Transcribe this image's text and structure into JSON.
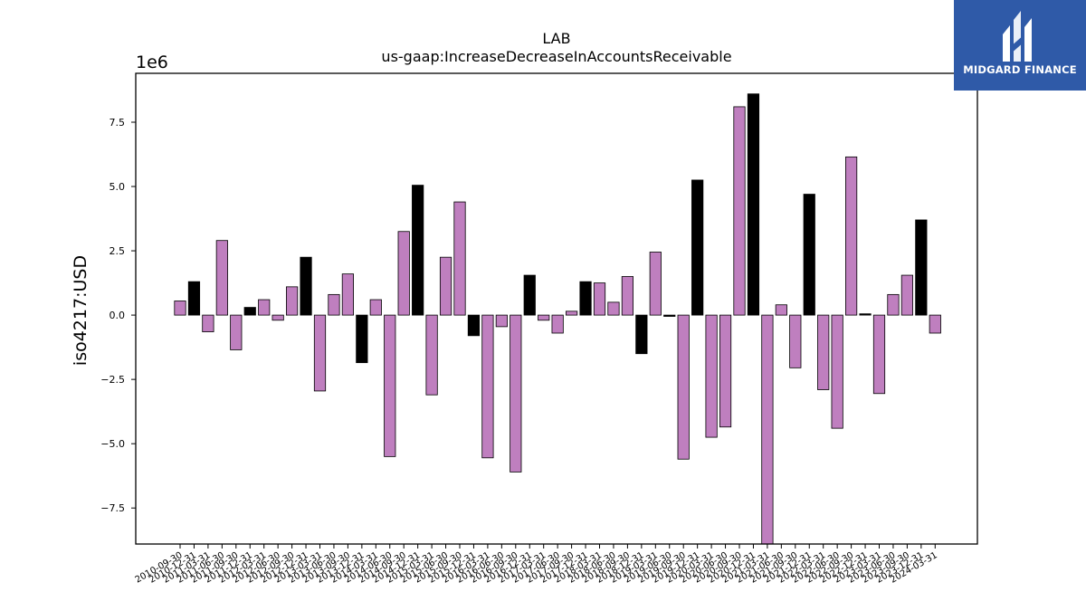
{
  "brand": {
    "name": "MIDGARD FINANCE",
    "logo_icon": "midgard-logo-icon",
    "bg_color": "#2f5aa8"
  },
  "chart_data": {
    "type": "bar",
    "title": "LAB",
    "subtitle": "us-gaap:IncreaseDecreaseInAccountsReceivable",
    "ylabel": "iso4217:USD",
    "xlabel": "",
    "y_offset_label": "1e6",
    "y_scale": 1000000,
    "ylim": [
      -8.9,
      9.4
    ],
    "yticks": [
      -7.5,
      -5.0,
      -2.5,
      0.0,
      2.5,
      5.0,
      7.5
    ],
    "ytick_labels": [
      "−7.5",
      "−5.0",
      "−2.5",
      "0.0",
      "2.5",
      "5.0",
      "7.5"
    ],
    "grid": false,
    "colors": {
      "quarterly": "#bf7fbf",
      "annual": "#000000"
    },
    "categories": [
      "2010-09-30",
      "2010-12-31",
      "2011-03-31",
      "2011-06-30",
      "2011-09-30",
      "2011-12-31",
      "2012-03-31",
      "2012-06-30",
      "2012-09-30",
      "2012-12-31",
      "2013-03-31",
      "2013-06-30",
      "2013-09-30",
      "2013-12-31",
      "2014-03-31",
      "2014-06-30",
      "2014-09-30",
      "2014-12-31",
      "2015-03-31",
      "2015-06-30",
      "2015-09-30",
      "2015-12-31",
      "2016-03-31",
      "2016-06-30",
      "2016-09-30",
      "2016-12-31",
      "2017-03-31",
      "2017-06-30",
      "2017-09-30",
      "2017-12-31",
      "2018-03-31",
      "2018-06-30",
      "2018-09-30",
      "2018-12-31",
      "2019-03-31",
      "2019-06-30",
      "2019-09-30",
      "2019-12-31",
      "2020-03-31",
      "2020-06-30",
      "2020-09-30",
      "2020-12-31",
      "2021-03-31",
      "2021-06-30",
      "2021-09-30",
      "2021-12-31",
      "2022-03-31",
      "2022-06-30",
      "2022-09-30",
      "2022-12-31",
      "2023-03-31",
      "2023-06-30",
      "2023-09-30",
      "2023-12-31",
      "2024-03-31"
    ],
    "values": [
      0.55,
      1.3,
      -0.65,
      2.9,
      -1.35,
      0.3,
      0.6,
      -0.2,
      1.1,
      2.25,
      -2.95,
      0.8,
      1.6,
      -1.85,
      0.6,
      -5.5,
      3.25,
      5.05,
      -3.1,
      2.25,
      4.4,
      -0.8,
      -5.55,
      -0.45,
      -6.1,
      1.55,
      -0.2,
      -0.7,
      0.15,
      1.3,
      1.25,
      0.5,
      1.5,
      -1.5,
      2.45,
      -0.05,
      -5.6,
      5.25,
      -4.75,
      -4.35,
      8.1,
      8.6,
      -8.9,
      0.4,
      -2.05,
      4.7,
      -2.9,
      -4.4,
      6.15,
      0.05,
      -3.05,
      0.8,
      1.55,
      3.7,
      -0.7
    ],
    "annual_flags": [
      0,
      1,
      0,
      0,
      0,
      1,
      0,
      0,
      0,
      1,
      0,
      0,
      0,
      1,
      0,
      0,
      0,
      1,
      0,
      0,
      0,
      1,
      0,
      0,
      0,
      1,
      0,
      0,
      0,
      1,
      0,
      0,
      0,
      1,
      0,
      1,
      0,
      1,
      0,
      0,
      0,
      1,
      0,
      0,
      0,
      1,
      0,
      0,
      0,
      1,
      0,
      0,
      0,
      1,
      0
    ]
  }
}
